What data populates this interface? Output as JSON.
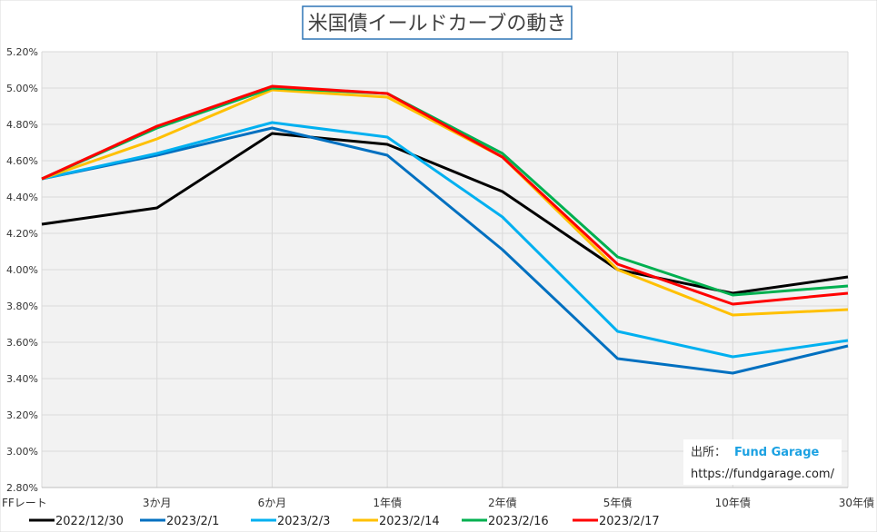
{
  "chart_data": {
    "type": "line",
    "title": "米国債イールドカーブの動き",
    "xlabel": "",
    "ylabel": "",
    "categories": [
      "FFレート",
      "3か月",
      "6か月",
      "1年債",
      "2年債",
      "5年債",
      "10年債",
      "30年債"
    ],
    "ylim": [
      2.8,
      5.2
    ],
    "yticks": [
      2.8,
      3.0,
      3.2,
      3.4,
      3.6,
      3.8,
      4.0,
      4.2,
      4.4,
      4.6,
      4.8,
      5.0,
      5.2
    ],
    "ytick_labels": [
      "2.80%",
      "3.00%",
      "3.20%",
      "3.40%",
      "3.60%",
      "3.80%",
      "4.00%",
      "4.20%",
      "4.40%",
      "4.60%",
      "4.80%",
      "5.00%",
      "5.20%"
    ],
    "grid": true,
    "legend_position": "bottom",
    "series": [
      {
        "name": "2022/12/30",
        "color": "#000000",
        "values": [
          4.25,
          4.34,
          4.75,
          4.69,
          4.43,
          4.0,
          3.87,
          3.96
        ]
      },
      {
        "name": "2023/2/1",
        "color": "#0070C0",
        "values": [
          4.5,
          4.63,
          4.78,
          4.63,
          4.11,
          3.51,
          3.43,
          3.58
        ]
      },
      {
        "name": "2023/2/3",
        "color": "#00B0F0",
        "values": [
          4.5,
          4.64,
          4.81,
          4.73,
          4.29,
          3.66,
          3.52,
          3.61
        ]
      },
      {
        "name": "2023/2/14",
        "color": "#FFC000",
        "values": [
          4.5,
          4.72,
          4.99,
          4.95,
          4.62,
          4.0,
          3.75,
          3.78
        ]
      },
      {
        "name": "2023/2/16",
        "color": "#00B050",
        "values": [
          4.5,
          4.78,
          5.0,
          4.97,
          4.64,
          4.07,
          3.86,
          3.91
        ]
      },
      {
        "name": "2023/2/17",
        "color": "#FF0000",
        "values": [
          4.5,
          4.79,
          5.01,
          4.97,
          4.62,
          4.03,
          3.81,
          3.87
        ]
      }
    ],
    "annotation": {
      "source_label": "出所：",
      "source_name": "Fund Garage",
      "url": "https://fundgarage.com/"
    }
  }
}
